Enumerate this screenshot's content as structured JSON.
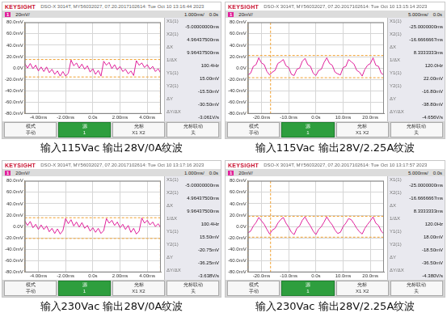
{
  "brand": "KEYSIGHT",
  "softkeys": [
    {
      "title": "模式",
      "label": "手动"
    },
    {
      "title": "源",
      "label": "1"
    },
    {
      "title": "光标",
      "label": "X1 X2"
    },
    {
      "title": "光标联动",
      "label": "关"
    }
  ],
  "chart_data": [
    {
      "type": "line",
      "title": "输入115Vac 输出28V/0A纹波",
      "header": "DSO-X 3014T, MY56032027, 07.20.2017102614: Tue Oct 10 13:16:44 2023",
      "channel": "1",
      "scale": "20mV/",
      "timebase": "1.000ms/",
      "delay": "0.0s",
      "color": "#e0209a",
      "grid": true,
      "x": [
        -5,
        -4.8,
        -4.6,
        -4.4,
        -4.2,
        -4,
        -3.8,
        -3.6,
        -3.4,
        -3.2,
        -3,
        -2.8,
        -2.6,
        -2.4,
        -2.2,
        -2,
        -1.8,
        -1.6,
        -1.4,
        -1.2,
        -1,
        -0.8,
        -0.6,
        -0.4,
        -0.2,
        0,
        0.2,
        0.4,
        0.6,
        0.8,
        1,
        1.2,
        1.4,
        1.6,
        1.8,
        2,
        2.2,
        2.4,
        2.6,
        2.8,
        3,
        3.2,
        3.4,
        3.6,
        3.8,
        4,
        4.2,
        4.4,
        4.6,
        4.8,
        5
      ],
      "values": [
        8,
        0,
        8,
        -1,
        5,
        -5,
        2,
        -6,
        2,
        -8,
        -2,
        -11,
        -5,
        -14,
        -6,
        -14,
        -9,
        14,
        4,
        9,
        0,
        7,
        -2,
        4,
        -7,
        -1,
        -11,
        -4,
        -14,
        12,
        5,
        10,
        -1,
        6,
        -3,
        3,
        -6,
        -2,
        -10,
        -5,
        -13,
        13,
        5,
        9,
        1,
        6,
        -2,
        3,
        -6,
        -1,
        -9
      ],
      "xlim": [
        -5,
        5
      ],
      "xticks": [
        {
          "value": -4,
          "label": "-4.00ms"
        },
        {
          "value": -2,
          "label": "-2.00ms"
        },
        {
          "value": 0,
          "label": "0.0s"
        },
        {
          "value": 2,
          "label": "2.00ms"
        },
        {
          "value": 4,
          "label": "4.00ms"
        }
      ],
      "ylim": [
        -80,
        80
      ],
      "yticks": [
        {
          "value": -80,
          "label": "-80.0mV"
        },
        {
          "value": -60,
          "label": "-60.0mV"
        },
        {
          "value": -40,
          "label": "-40.0mV"
        },
        {
          "value": -20,
          "label": "-20.0mV"
        },
        {
          "value": 0,
          "label": "0.0V"
        },
        {
          "value": 20,
          "label": "20.0mV"
        },
        {
          "value": 40,
          "label": "40.0mV"
        },
        {
          "value": 60,
          "label": "60.0mV"
        },
        {
          "value": 80,
          "label": "80.0mV"
        }
      ],
      "x_cursors": [
        {
          "name": "X1(1)",
          "value": -5,
          "label": "-5.00000000ms"
        },
        {
          "name": "X2(1)",
          "value": 4.964375,
          "label": "4.96437500ms"
        }
      ],
      "x_readouts": [
        {
          "name": "ΔX",
          "label": "9.96437500ms"
        },
        {
          "name": "1/ΔX",
          "label": "100.4Hz"
        }
      ],
      "y_cursors": [
        {
          "name": "Y1(1)",
          "value": 15,
          "label": "15.00mV"
        },
        {
          "name": "Y2(1)",
          "value": -15.5,
          "label": "-15.50mV"
        }
      ],
      "y_readouts": [
        {
          "name": "ΔY",
          "label": "-30.50mV"
        },
        {
          "name": "ΔY/ΔX",
          "label": "-3.061V/s"
        }
      ]
    },
    {
      "type": "line",
      "title": "输入115Vac 输出28V/2.25A纹波",
      "header": "DSO-X 3014T, MY56032027, 07.20.2017102614: Tue Oct 10 13:15:14 2023",
      "channel": "1",
      "scale": "20mV/",
      "timebase": "5.000ms/",
      "delay": "0.0s",
      "color": "#e0209a",
      "grid": true,
      "x": [
        -25,
        -24,
        -23,
        -22,
        -21,
        -20,
        -19,
        -18,
        -17,
        -16,
        -15,
        -14,
        -13,
        -12,
        -11,
        -10,
        -9,
        -8,
        -7,
        -6,
        -5,
        -4,
        -3,
        -2,
        -1,
        0,
        1,
        2,
        3,
        4,
        5,
        6,
        7,
        8,
        9,
        10,
        11,
        12,
        13,
        14,
        15,
        16,
        17,
        18,
        19,
        20,
        21,
        22,
        23,
        24,
        25
      ],
      "values": [
        -12,
        -9,
        3,
        6,
        18,
        9,
        6,
        -6,
        -12,
        -7,
        -4,
        8,
        11,
        15,
        4,
        1,
        -11,
        -13,
        -2,
        0,
        12,
        17,
        6,
        3,
        -9,
        -13,
        -4,
        -2,
        10,
        18,
        8,
        5,
        -7,
        -10,
        -12,
        1,
        3,
        15,
        11,
        7,
        -4,
        -7,
        -14,
        -2,
        5,
        8,
        18,
        5,
        3,
        -9,
        -12
      ],
      "xlim": [
        -25,
        25
      ],
      "xticks": [
        {
          "value": -20,
          "label": "-20.0ms"
        },
        {
          "value": -10,
          "label": "-10.0ms"
        },
        {
          "value": 0,
          "label": "0.0s"
        },
        {
          "value": 10,
          "label": "10.0ms"
        },
        {
          "value": 20,
          "label": "20.0ms"
        }
      ],
      "ylim": [
        -80,
        80
      ],
      "yticks": [
        {
          "value": -80,
          "label": "-80.0mV"
        },
        {
          "value": -60,
          "label": "-60.0mV"
        },
        {
          "value": -40,
          "label": "-40.0mV"
        },
        {
          "value": -20,
          "label": "-20.0mV"
        },
        {
          "value": 0,
          "label": "0.0V"
        },
        {
          "value": 20,
          "label": "20.0mV"
        },
        {
          "value": 40,
          "label": "40.0mV"
        },
        {
          "value": 60,
          "label": "60.0mV"
        },
        {
          "value": 80,
          "label": "80.0mV"
        }
      ],
      "x_cursors": [
        {
          "name": "X1(1)",
          "value": -25,
          "label": "-25.0000000ms"
        },
        {
          "name": "X2(1)",
          "value": -16.6666667,
          "label": "-16.6666667ms"
        }
      ],
      "x_readouts": [
        {
          "name": "ΔX",
          "label": "8.3333333ms"
        },
        {
          "name": "1/ΔX",
          "label": "120.0Hz"
        }
      ],
      "y_cursors": [
        {
          "name": "Y1(1)",
          "value": 22,
          "label": "22.00mV"
        },
        {
          "name": "Y2(1)",
          "value": -16.8,
          "label": "-16.80mV"
        }
      ],
      "y_readouts": [
        {
          "name": "ΔY",
          "label": "-38.80mV"
        },
        {
          "name": "ΔY/ΔX",
          "label": "-4.656V/s"
        }
      ]
    },
    {
      "type": "line",
      "title": "输入230Vac 输出28V/0A纹波",
      "header": "DSO-X 3014T, MY56032027, 07.20.2017102614: Tue Oct 10 13:17:16 2023",
      "channel": "1",
      "scale": "20mV/",
      "timebase": "1.000ms/",
      "delay": "0.0s",
      "color": "#e0209a",
      "grid": true,
      "x": [
        -5,
        -4.8,
        -4.6,
        -4.4,
        -4.2,
        -4,
        -3.8,
        -3.6,
        -3.4,
        -3.2,
        -3,
        -2.8,
        -2.6,
        -2.4,
        -2.2,
        -2,
        -1.8,
        -1.6,
        -1.4,
        -1.2,
        -1,
        -0.8,
        -0.6,
        -0.4,
        -0.2,
        0,
        0.2,
        0.4,
        0.6,
        0.8,
        1,
        1.2,
        1.4,
        1.6,
        1.8,
        2,
        2.2,
        2.4,
        2.6,
        2.8,
        3,
        3.2,
        3.4,
        3.6,
        3.8,
        4,
        4.2,
        4.4,
        4.6,
        4.8,
        5
      ],
      "values": [
        10,
        2,
        9,
        -2,
        4,
        -5,
        3,
        -5,
        1,
        -9,
        -3,
        -12,
        -4,
        -13,
        -7,
        14,
        5,
        12,
        1,
        8,
        -1,
        7,
        -3,
        2,
        -8,
        -2,
        -10,
        -3,
        -12,
        -7,
        14,
        6,
        11,
        2,
        8,
        -2,
        4,
        -5,
        2,
        -10,
        -3,
        -13,
        -8,
        15,
        6,
        11,
        3,
        8,
        0,
        5,
        -2
      ],
      "xlim": [
        -5,
        5
      ],
      "xticks": [
        {
          "value": -4,
          "label": "-4.00ms"
        },
        {
          "value": -2,
          "label": "-2.00ms"
        },
        {
          "value": 0,
          "label": "0.0s"
        },
        {
          "value": 2,
          "label": "2.00ms"
        },
        {
          "value": 4,
          "label": "4.00ms"
        }
      ],
      "ylim": [
        -80,
        80
      ],
      "yticks": [
        {
          "value": -80,
          "label": "-80.0mV"
        },
        {
          "value": -60,
          "label": "-60.0mV"
        },
        {
          "value": -40,
          "label": "-40.0mV"
        },
        {
          "value": -20,
          "label": "-20.0mV"
        },
        {
          "value": 0,
          "label": "0.0V"
        },
        {
          "value": 20,
          "label": "20.0mV"
        },
        {
          "value": 40,
          "label": "40.0mV"
        },
        {
          "value": 60,
          "label": "60.0mV"
        },
        {
          "value": 80,
          "label": "80.0mV"
        }
      ],
      "x_cursors": [
        {
          "name": "X1(1)",
          "value": -5,
          "label": "-5.00000000ms"
        },
        {
          "name": "X2(1)",
          "value": 4.964375,
          "label": "4.96437500ms"
        }
      ],
      "x_readouts": [
        {
          "name": "ΔX",
          "label": "9.96437500ms"
        },
        {
          "name": "1/ΔX",
          "label": "100.4Hz"
        }
      ],
      "y_cursors": [
        {
          "name": "Y1(1)",
          "value": 15.5,
          "label": "15.50mV"
        },
        {
          "name": "Y2(1)",
          "value": -20.75,
          "label": "-20.75mV"
        }
      ],
      "y_readouts": [
        {
          "name": "ΔY",
          "label": "-36.25mV"
        },
        {
          "name": "ΔY/ΔX",
          "label": "-3.638V/s"
        }
      ]
    },
    {
      "type": "line",
      "title": "输入230Vac 输出28V/2.25A纹波",
      "header": "DSO-X 3014T, MY56032027, 07.20.2017102614: Tue Oct 10 13:17:57 2023",
      "channel": "1",
      "scale": "20mV/",
      "timebase": "5.000ms/",
      "delay": "0.0s",
      "color": "#e0209a",
      "grid": true,
      "x": [
        -25,
        -24,
        -23,
        -22,
        -21,
        -20,
        -19,
        -18,
        -17,
        -16,
        -15,
        -14,
        -13,
        -12,
        -11,
        -10,
        -9,
        -8,
        -7,
        -6,
        -5,
        -4,
        -3,
        -2,
        -1,
        0,
        1,
        2,
        3,
        4,
        5,
        6,
        7,
        8,
        9,
        10,
        11,
        12,
        13,
        14,
        15,
        16,
        17,
        18,
        19,
        20,
        21,
        22,
        23,
        24,
        25
      ],
      "values": [
        -11,
        -8,
        1,
        7,
        16,
        10,
        4,
        -5,
        -13,
        -6,
        -3,
        6,
        12,
        16,
        6,
        -1,
        -10,
        -14,
        -3,
        1,
        11,
        17,
        8,
        1,
        -8,
        -14,
        -5,
        0,
        8,
        17,
        9,
        3,
        -6,
        -12,
        -10,
        0,
        6,
        14,
        12,
        5,
        -3,
        -9,
        -13,
        -3,
        4,
        10,
        17,
        6,
        2,
        -8,
        -13
      ],
      "xlim": [
        -25,
        25
      ],
      "xticks": [
        {
          "value": -20,
          "label": "-20.0ms"
        },
        {
          "value": -10,
          "label": "-10.0ms"
        },
        {
          "value": 0,
          "label": "0.0s"
        },
        {
          "value": 10,
          "label": "10.0ms"
        },
        {
          "value": 20,
          "label": "20.0ms"
        }
      ],
      "ylim": [
        -80,
        80
      ],
      "yticks": [
        {
          "value": -80,
          "label": "-80.0mV"
        },
        {
          "value": -60,
          "label": "-60.0mV"
        },
        {
          "value": -40,
          "label": "-40.0mV"
        },
        {
          "value": -20,
          "label": "-20.0mV"
        },
        {
          "value": 0,
          "label": "0.0V"
        },
        {
          "value": 20,
          "label": "20.0mV"
        },
        {
          "value": 40,
          "label": "40.0mV"
        },
        {
          "value": 60,
          "label": "60.0mV"
        },
        {
          "value": 80,
          "label": "80.0mV"
        }
      ],
      "x_cursors": [
        {
          "name": "X1(1)",
          "value": -25,
          "label": "-25.0000000ms"
        },
        {
          "name": "X2(1)",
          "value": -16.6666667,
          "label": "-16.6666667ms"
        }
      ],
      "x_readouts": [
        {
          "name": "ΔX",
          "label": "8.3333333ms"
        },
        {
          "name": "1/ΔX",
          "label": "120.0Hz"
        }
      ],
      "y_cursors": [
        {
          "name": "Y1(1)",
          "value": 18,
          "label": "18.00mV"
        },
        {
          "name": "Y2(1)",
          "value": -18.5,
          "label": "-18.50mV"
        }
      ],
      "y_readouts": [
        {
          "name": "ΔY",
          "label": "-36.50mV"
        },
        {
          "name": "ΔY/ΔX",
          "label": "-4.380V/s"
        }
      ]
    }
  ]
}
